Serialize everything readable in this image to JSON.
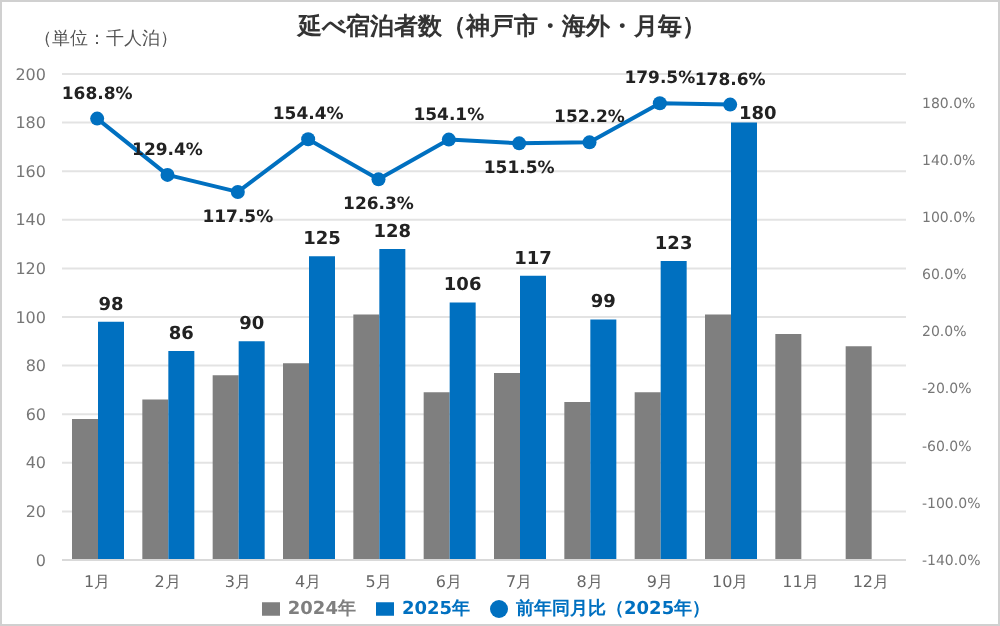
{
  "chart_data": {
    "type": "bar",
    "title": "延べ宿泊者数（神戸市・海外・月毎）",
    "annotations": [
      "（単位：千人泊）"
    ],
    "categories": [
      "1月",
      "2月",
      "3月",
      "4月",
      "5月",
      "6月",
      "7月",
      "8月",
      "9月",
      "10月",
      "11月",
      "12月"
    ],
    "series": [
      {
        "name": "2024年",
        "color": "#7f7f7f",
        "values": [
          58,
          66,
          76,
          81,
          101,
          69,
          77,
          65,
          69,
          101,
          93,
          88
        ]
      },
      {
        "name": "2025年",
        "color": "#0070c0",
        "values": [
          98,
          86,
          90,
          125,
          128,
          106,
          117,
          99,
          123,
          180,
          null,
          null
        ],
        "value_labels": [
          "98",
          "86",
          "90",
          "125",
          "128",
          "106",
          "117",
          "99",
          "123",
          "180",
          null,
          null
        ]
      },
      {
        "name": "前年同月比（2025年）",
        "type": "line",
        "axis": "y2",
        "color": "#0070c0",
        "marker": "circle",
        "values": [
          168.8,
          129.4,
          117.5,
          154.4,
          126.3,
          154.1,
          151.5,
          152.2,
          179.5,
          178.6,
          null,
          null
        ],
        "value_labels": [
          "168.8%",
          "129.4%",
          "117.5%",
          "154.4%",
          "126.3%",
          "154.1%",
          "151.5%",
          "152.2%",
          "179.5%",
          "178.6%",
          null,
          null
        ]
      }
    ],
    "ylim": [
      0,
      200
    ],
    "yticks": [
      0,
      20,
      40,
      60,
      80,
      100,
      120,
      140,
      160,
      180,
      200
    ],
    "y2lim": [
      -140,
      200
    ],
    "y2ticks": [
      {
        "value": -140,
        "label": "-140.0%"
      },
      {
        "value": -100,
        "label": "-100.0%"
      },
      {
        "value": -60,
        "label": "-60.0%"
      },
      {
        "value": -20,
        "label": "-20.0%"
      },
      {
        "value": 20,
        "label": "20.0%"
      },
      {
        "value": 60,
        "label": "60.0%"
      },
      {
        "value": 100,
        "label": "100.0%"
      },
      {
        "value": 140,
        "label": "140.0%"
      },
      {
        "value": 180,
        "label": "180.0%"
      }
    ],
    "grid": "y",
    "legend": "bottom"
  }
}
